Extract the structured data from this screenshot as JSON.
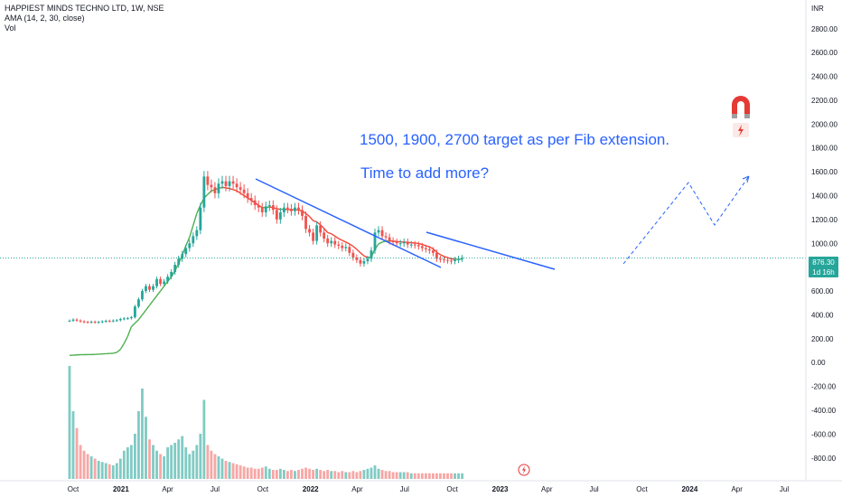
{
  "legend": {
    "symbol": "HAPPIEST MINDS TECHNO LTD, 1W, NSE",
    "indicator": "AMA (14, 2, 30, close)",
    "volume": "Vol"
  },
  "annotations": {
    "targets": "1500, 1900, 2700  target as per Fib extension.",
    "question": "Time to add more?"
  },
  "price_tag": {
    "price": "876.30",
    "countdown": "1d 16h"
  },
  "currency": "INR",
  "icons": {
    "magnet": "magnet-icon",
    "flash": "lightning-icon"
  },
  "colors": {
    "up": "#26a69a",
    "down": "#ef5350",
    "volume_up": "#80cbc4",
    "volume_down": "#f7a7a5",
    "ama_up": "#4caf50",
    "ama_down": "#f44336",
    "trendline": "#2962ff",
    "axis_text": "#131722",
    "current_price_line": "#26a69a"
  },
  "chart_data": {
    "type": "candlestick",
    "yaxis": {
      "ticks": [
        "-800.00",
        "-600.00",
        "-400.00",
        "-200.00",
        "0.00",
        "200.00",
        "400.00",
        "600.00",
        "800.00",
        "1000.00",
        "1200.00",
        "1400.00",
        "1600.00",
        "1800.00",
        "2000.00",
        "2200.00",
        "2400.00",
        "2600.00",
        "2800.00"
      ],
      "ylim": [
        -870,
        2980
      ],
      "label": "INR"
    },
    "xaxis": {
      "ticks": [
        {
          "label": "Oct",
          "date": "2020-10-01"
        },
        {
          "label": "2021",
          "date": "2021-01-01"
        },
        {
          "label": "Apr",
          "date": "2021-04-01"
        },
        {
          "label": "Jul",
          "date": "2021-07-01"
        },
        {
          "label": "Oct",
          "date": "2021-10-01"
        },
        {
          "label": "2022",
          "date": "2022-01-01"
        },
        {
          "label": "Apr",
          "date": "2022-04-01"
        },
        {
          "label": "Jul",
          "date": "2022-07-01"
        },
        {
          "label": "Oct",
          "date": "2022-10-01"
        },
        {
          "label": "2023",
          "date": "2023-01-01"
        },
        {
          "label": "Apr",
          "date": "2023-04-01"
        },
        {
          "label": "Jul",
          "date": "2023-07-01"
        },
        {
          "label": "Oct",
          "date": "2023-10-01"
        },
        {
          "label": "2024",
          "date": "2024-01-01"
        },
        {
          "label": "Apr",
          "date": "2024-04-01"
        },
        {
          "label": "Jul",
          "date": "2024-07-01"
        }
      ]
    },
    "series": [
      {
        "name": "price",
        "weekly_close": [
          351,
          360,
          352,
          345,
          340,
          338,
          342,
          336,
          340,
          345,
          350,
          348,
          352,
          355,
          365,
          370,
          372,
          380,
          470,
          530,
          600,
          640,
          610,
          640,
          700,
          660,
          680,
          720,
          760,
          820,
          870,
          910,
          960,
          1000,
          1060,
          1110,
          1300,
          1560,
          1490,
          1470,
          1420,
          1500,
          1520,
          1480,
          1520,
          1500,
          1470,
          1450,
          1420,
          1380,
          1360,
          1320,
          1300,
          1260,
          1310,
          1320,
          1280,
          1200,
          1260,
          1300,
          1290,
          1270,
          1300,
          1280,
          1230,
          1120,
          1090,
          1020,
          1150,
          1090,
          1040,
          1000,
          1020,
          990,
          980,
          960,
          970,
          920,
          880,
          860,
          830,
          850,
          870,
          940,
          1090,
          1110,
          1060,
          1050,
          1020,
          1010,
          1000,
          1000,
          1010,
          990,
          990,
          985,
          975,
          960,
          950,
          940,
          920,
          870,
          865,
          860,
          855,
          850,
          860,
          870,
          876
        ]
      },
      {
        "name": "AMA (14, 2, 30, close)",
        "weekly_value": [
          60,
          62,
          64,
          66,
          66,
          67,
          67,
          68,
          70,
          72,
          74,
          76,
          78,
          85,
          110,
          160,
          220,
          300,
          330,
          360,
          400,
          440,
          480,
          520,
          560,
          600,
          640,
          680,
          720,
          770,
          830,
          900,
          980,
          1050,
          1150,
          1250,
          1320,
          1380,
          1410,
          1440,
          1450,
          1460,
          1470,
          1465,
          1460,
          1450,
          1440,
          1420,
          1400,
          1380,
          1360,
          1340,
          1320,
          1300,
          1300,
          1305,
          1300,
          1290,
          1285,
          1285,
          1283,
          1282,
          1282,
          1280,
          1270,
          1250,
          1225,
          1190,
          1180,
          1155,
          1125,
          1090,
          1080,
          1060,
          1040,
          1025,
          1010,
          995,
          975,
          950,
          920,
          895,
          880,
          885,
          950,
          995,
          1010,
          1018,
          1020,
          1018,
          1015,
          1012,
          1010,
          1008,
          1005,
          1002,
          998,
          990,
          980,
          970,
          955,
          925,
          905,
          890,
          880,
          870,
          866,
          866,
          868
        ]
      },
      {
        "name": "Vol",
        "weekly_volume_relative": [
          100,
          60,
          45,
          30,
          25,
          22,
          20,
          18,
          16,
          15,
          14,
          13,
          12,
          14,
          18,
          25,
          28,
          30,
          40,
          60,
          80,
          55,
          35,
          30,
          25,
          22,
          20,
          28,
          30,
          32,
          35,
          38,
          28,
          22,
          25,
          30,
          40,
          70,
          30,
          25,
          22,
          20,
          18,
          16,
          15,
          14,
          13,
          12,
          11,
          10,
          10,
          9,
          9,
          10,
          11,
          9,
          8,
          8,
          9,
          8,
          7,
          8,
          7,
          8,
          9,
          10,
          9,
          8,
          9,
          8,
          7,
          8,
          7,
          7,
          6,
          7,
          6,
          6,
          7,
          6,
          7,
          8,
          9,
          10,
          12,
          9,
          8,
          7,
          7,
          6,
          6,
          6,
          6,
          6,
          5,
          5,
          5,
          5,
          5,
          5,
          5,
          5,
          5,
          5,
          5,
          5,
          5,
          5,
          5
        ]
      }
    ],
    "current_price": 876.3
  }
}
